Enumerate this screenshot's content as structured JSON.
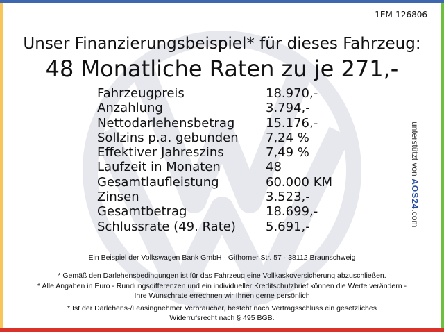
{
  "reference": "1EM-126806",
  "headline": "Unser Finanzierungsbeispiel* für dieses Fahrzeug:",
  "rate_line": "48 Monatliche Raten zu je 271,-",
  "rows": [
    {
      "label": "Fahrzeugpreis",
      "value": "18.970,-"
    },
    {
      "label": "Anzahlung",
      "value": "3.794,-"
    },
    {
      "label": "Nettodarlehensbetrag",
      "value": "15.176,-"
    },
    {
      "label": "Sollzins p.a. gebunden",
      "value": "7,24 %"
    },
    {
      "label": "Effektiver Jahreszins",
      "value": "7,49 %"
    },
    {
      "label": "Laufzeit in Monaten",
      "value": "48"
    },
    {
      "label": "Gesamtlaufleistung",
      "value": "60.000 KM"
    },
    {
      "label": "Zinsen",
      "value": "3.523,-"
    },
    {
      "label": "Gesamtbetrag",
      "value": "18.699,-"
    },
    {
      "label": "Schlussrate (49. Rate)",
      "value": "5.691,-"
    }
  ],
  "sponsor": {
    "prefix": "unterstützt von",
    "brand": "AOS24",
    "suffix": ".com"
  },
  "notes": {
    "bank": "Ein Beispiel der Volkswagen Bank GmbH · Gifhorner Str. 57 · 38112 Braunschweig",
    "n1": "* Gemäß den Darlehensbedingungen ist für das Fahrzeug eine Vollkaskoversicherung abzuschließen.",
    "n2": "* Alle Angaben in Euro - Rundungsdifferenzen und ein individueller Kreditschutzbrief können die Werte verändern - Ihre Wunschrate errechnen wir Ihnen gerne persönlich",
    "n3": "* Ist der Darlehens-/Leasingnehmer Verbraucher, besteht nach Vertragsschluss ein gesetzliches Widerrufsrecht nach § 495 BGB."
  },
  "colors": {
    "top": "#3f67b0",
    "left": "#f7c55a",
    "right": "#6fbf3e",
    "bottom": "#d9322a"
  }
}
